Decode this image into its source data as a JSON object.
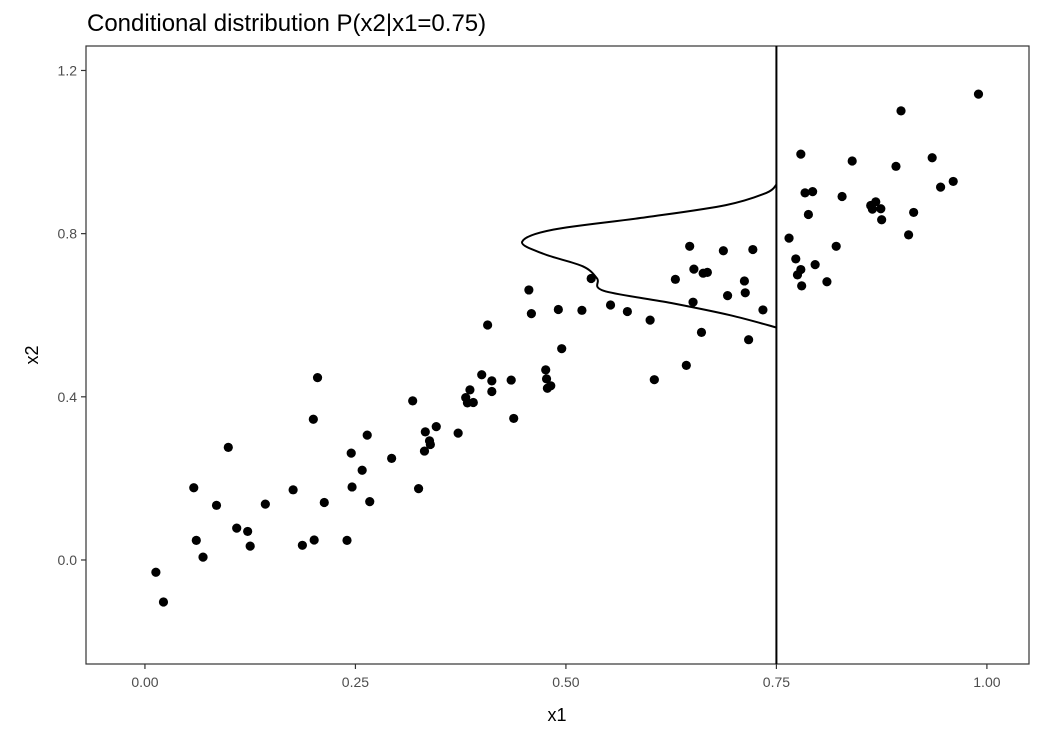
{
  "chart_data": {
    "type": "scatter",
    "title": "Conditional distribution P(x2|x1=0.75)",
    "xlabel": "x1",
    "ylabel": "x2",
    "xlim": [
      -0.07,
      1.05
    ],
    "ylim": [
      -0.255,
      1.26
    ],
    "x_ticks": [
      0,
      0.25,
      0.5,
      0.75,
      1
    ],
    "x_tick_labels": [
      "0.00",
      "0.25",
      "0.50",
      "0.75",
      "1.00"
    ],
    "y_ticks": [
      0,
      0.4,
      0.8,
      1.2
    ],
    "y_tick_labels": [
      "0.0",
      "0.4",
      "0.8",
      "1.2"
    ],
    "grid": false,
    "legend": "none",
    "point_color": "#000000",
    "vline_x": 0.75,
    "points": [
      [
        0.013,
        -0.03
      ],
      [
        0.022,
        -0.103
      ],
      [
        0.058,
        0.177
      ],
      [
        0.061,
        0.048
      ],
      [
        0.069,
        0.007
      ],
      [
        0.085,
        0.134
      ],
      [
        0.099,
        0.276
      ],
      [
        0.109,
        0.078
      ],
      [
        0.122,
        0.07
      ],
      [
        0.125,
        0.034
      ],
      [
        0.143,
        0.137
      ],
      [
        0.176,
        0.172
      ],
      [
        0.187,
        0.036
      ],
      [
        0.2,
        0.345
      ],
      [
        0.201,
        0.049
      ],
      [
        0.205,
        0.447
      ],
      [
        0.213,
        0.141
      ],
      [
        0.24,
        0.048
      ],
      [
        0.245,
        0.262
      ],
      [
        0.246,
        0.179
      ],
      [
        0.258,
        0.22
      ],
      [
        0.264,
        0.306
      ],
      [
        0.267,
        0.143
      ],
      [
        0.293,
        0.249
      ],
      [
        0.318,
        0.39
      ],
      [
        0.325,
        0.175
      ],
      [
        0.332,
        0.267
      ],
      [
        0.333,
        0.314
      ],
      [
        0.338,
        0.292
      ],
      [
        0.339,
        0.283
      ],
      [
        0.346,
        0.327
      ],
      [
        0.372,
        0.311
      ],
      [
        0.381,
        0.398
      ],
      [
        0.383,
        0.385
      ],
      [
        0.386,
        0.417
      ],
      [
        0.39,
        0.386
      ],
      [
        0.4,
        0.454
      ],
      [
        0.407,
        0.576
      ],
      [
        0.412,
        0.413
      ],
      [
        0.412,
        0.439
      ],
      [
        0.435,
        0.441
      ],
      [
        0.438,
        0.347
      ],
      [
        0.456,
        0.662
      ],
      [
        0.459,
        0.604
      ],
      [
        0.476,
        0.466
      ],
      [
        0.477,
        0.444
      ],
      [
        0.478,
        0.421
      ],
      [
        0.482,
        0.427
      ],
      [
        0.491,
        0.614
      ],
      [
        0.495,
        0.518
      ],
      [
        0.519,
        0.612
      ],
      [
        0.53,
        0.69
      ],
      [
        0.553,
        0.625
      ],
      [
        0.573,
        0.609
      ],
      [
        0.6,
        0.588
      ],
      [
        0.605,
        0.442
      ],
      [
        0.63,
        0.688
      ],
      [
        0.643,
        0.477
      ],
      [
        0.647,
        0.769
      ],
      [
        0.651,
        0.632
      ],
      [
        0.652,
        0.713
      ],
      [
        0.661,
        0.558
      ],
      [
        0.663,
        0.703
      ],
      [
        0.668,
        0.705
      ],
      [
        0.687,
        0.758
      ],
      [
        0.692,
        0.648
      ],
      [
        0.712,
        0.684
      ],
      [
        0.713,
        0.655
      ],
      [
        0.717,
        0.54
      ],
      [
        0.722,
        0.761
      ],
      [
        0.734,
        0.613
      ],
      [
        0.765,
        0.789
      ],
      [
        0.773,
        0.738
      ],
      [
        0.775,
        0.699
      ],
      [
        0.779,
        0.995
      ],
      [
        0.779,
        0.712
      ],
      [
        0.78,
        0.672
      ],
      [
        0.784,
        0.9
      ],
      [
        0.788,
        0.847
      ],
      [
        0.793,
        0.903
      ],
      [
        0.796,
        0.724
      ],
      [
        0.81,
        0.682
      ],
      [
        0.821,
        0.769
      ],
      [
        0.828,
        0.891
      ],
      [
        0.84,
        0.978
      ],
      [
        0.862,
        0.869
      ],
      [
        0.864,
        0.86
      ],
      [
        0.868,
        0.878
      ],
      [
        0.874,
        0.861
      ],
      [
        0.875,
        0.834
      ],
      [
        0.892,
        0.965
      ],
      [
        0.898,
        1.101
      ],
      [
        0.907,
        0.797
      ],
      [
        0.913,
        0.852
      ],
      [
        0.935,
        0.986
      ],
      [
        0.945,
        0.914
      ],
      [
        0.96,
        0.928
      ],
      [
        0.99,
        1.142
      ]
    ],
    "conditional_density": {
      "at_x1": 0.75,
      "x2": [
        0.57,
        0.6,
        0.63,
        0.66,
        0.69,
        0.72,
        0.75,
        0.78,
        0.81,
        0.84,
        0.87,
        0.9,
        0.92
      ],
      "offset_x1": [
        0,
        0.055,
        0.125,
        0.205,
        0.213,
        0.23,
        0.276,
        0.302,
        0.265,
        0.155,
        0.06,
        0.012,
        0
      ]
    }
  }
}
